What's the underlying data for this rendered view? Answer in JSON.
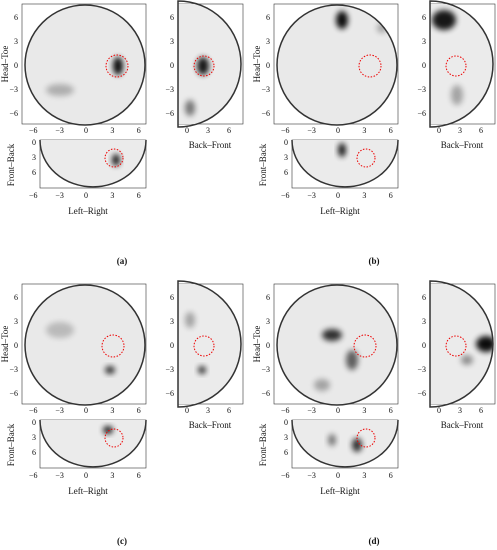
{
  "panels": [
    {
      "label": "(a)",
      "main": {
        "ylabel": "Head–Toe",
        "yticks": [
          "6",
          "3",
          "0",
          "−3",
          "−6"
        ],
        "xticks": [
          "−6",
          "−3",
          "0",
          "3",
          "6"
        ]
      },
      "side": {
        "xlabel": "Back–Front",
        "yticks": [
          "6",
          "3",
          "0",
          "−3",
          "−6"
        ],
        "xticks": [
          "0",
          "3",
          "6"
        ]
      },
      "bottom": {
        "ylabel": "Front–Back",
        "xlabel": "Left–Right",
        "yticks": [
          "0",
          "3",
          "6"
        ],
        "xticks": [
          "−6",
          "−3",
          "0",
          "3",
          "6"
        ]
      }
    },
    {
      "label": "(b)",
      "main": {
        "ylabel": "Head–Toe",
        "yticks": [
          "6",
          "3",
          "0",
          "−3",
          "−6"
        ],
        "xticks": [
          "−6",
          "−3",
          "0",
          "3",
          "6"
        ]
      },
      "side": {
        "xlabel": "Back–Front",
        "yticks": [
          "6",
          "3",
          "0",
          "−3",
          "−6"
        ],
        "xticks": [
          "0",
          "3",
          "6"
        ]
      },
      "bottom": {
        "ylabel": "Front–Back",
        "xlabel": "Left–Right",
        "yticks": [
          "0",
          "3",
          "6"
        ],
        "xticks": [
          "−6",
          "−3",
          "0",
          "3",
          "6"
        ]
      }
    },
    {
      "label": "(c)",
      "main": {
        "ylabel": "Head–Toe",
        "yticks": [
          "6",
          "3",
          "0",
          "−3",
          "−6"
        ],
        "xticks": [
          "−6",
          "−3",
          "0",
          "3",
          "6"
        ]
      },
      "side": {
        "xlabel": "Back–Front",
        "yticks": [
          "6",
          "3",
          "0",
          "−3",
          "−6"
        ],
        "xticks": [
          "0",
          "3",
          "6"
        ]
      },
      "bottom": {
        "ylabel": "Front–Back",
        "xlabel": "Left–Right",
        "yticks": [
          "0",
          "3",
          "6"
        ],
        "xticks": [
          "−6",
          "−3",
          "0",
          "3",
          "6"
        ]
      }
    },
    {
      "label": "(d)",
      "main": {
        "ylabel": "Head–Toe",
        "yticks": [
          "6",
          "3",
          "0",
          "−3",
          "−6"
        ],
        "xticks": [
          "−6",
          "−3",
          "0",
          "3",
          "6"
        ]
      },
      "side": {
        "xlabel": "Back–Front",
        "yticks": [
          "6",
          "3",
          "0",
          "−3",
          "−6"
        ],
        "xticks": [
          "0",
          "3",
          "6"
        ]
      },
      "bottom": {
        "ylabel": "Front–Back",
        "xlabel": "Left–Right",
        "yticks": [
          "0",
          "3",
          "6"
        ],
        "xticks": [
          "−6",
          "−3",
          "0",
          "3",
          "6"
        ]
      }
    }
  ]
}
